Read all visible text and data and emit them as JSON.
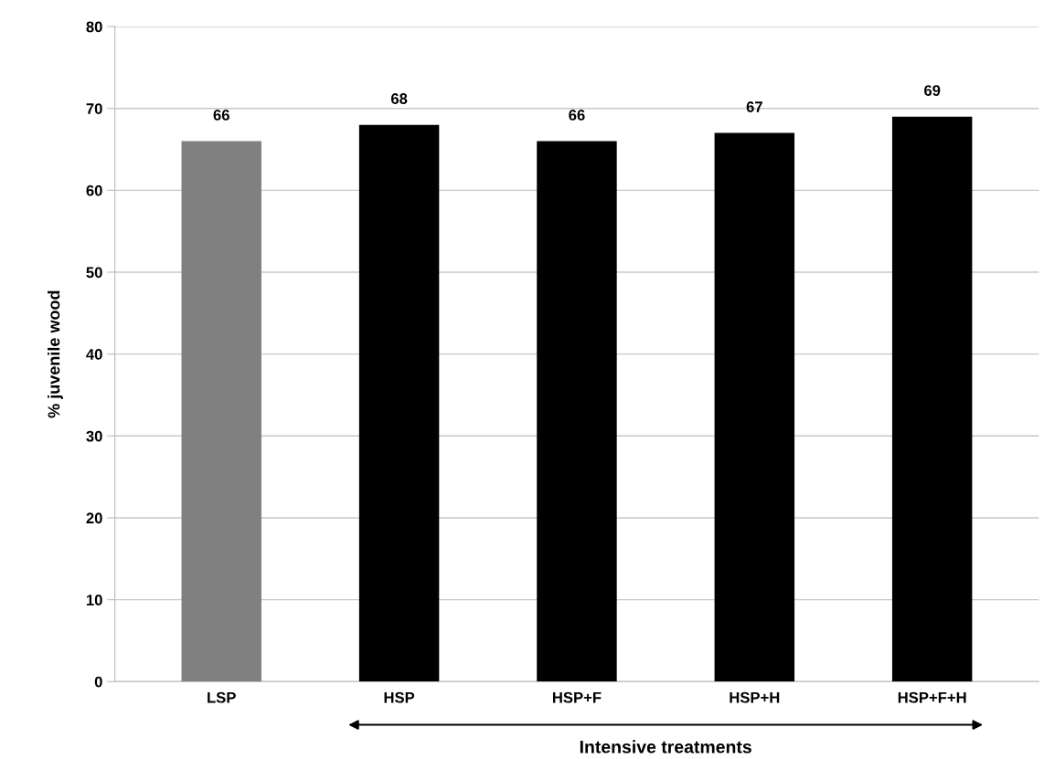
{
  "chart_data": {
    "type": "bar",
    "ylabel": "% juvenile wood",
    "categories": [
      "LSP",
      "HSP",
      "HSP+F",
      "HSP+H",
      "HSP+F+H"
    ],
    "values": [
      66,
      68,
      66,
      67,
      69
    ],
    "colors": [
      "#808080",
      "#000000",
      "#000000",
      "#000000",
      "#000000"
    ],
    "ylim": [
      0,
      80
    ],
    "yticks": [
      0,
      10,
      20,
      30,
      40,
      50,
      60,
      70,
      80
    ],
    "grid": "y",
    "data_labels": true,
    "annotations": [
      "Intensive treatments"
    ]
  }
}
